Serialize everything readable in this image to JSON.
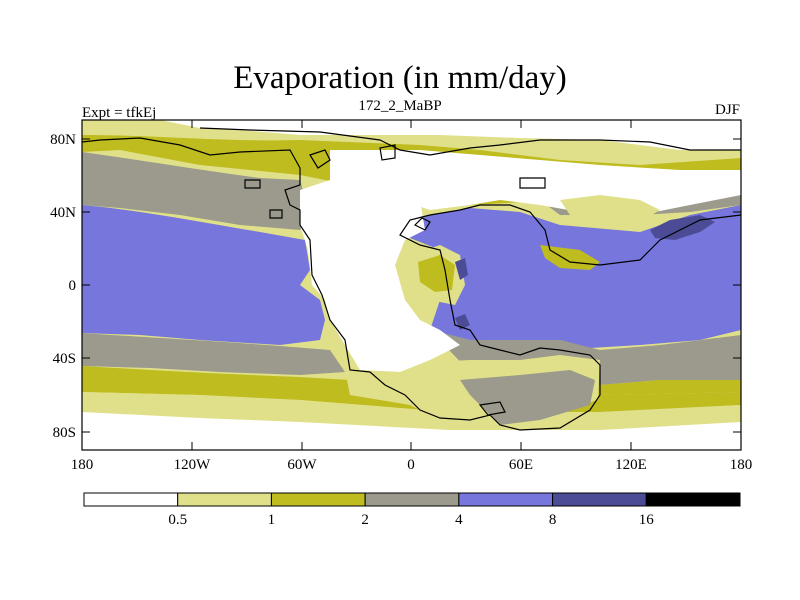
{
  "title": "Evaporation (in mm/day)",
  "subtitle_left": "Expt = tfkEj",
  "subtitle_center": "172_2_MaBP",
  "subtitle_right": "DJF",
  "lat_ticks": [
    "80N",
    "40N",
    "0",
    "40S",
    "80S"
  ],
  "lon_ticks": [
    "180",
    "120W",
    "60W",
    "0",
    "60E",
    "120E",
    "180"
  ],
  "colorbar": {
    "levels": [
      "0.5",
      "1",
      "2",
      "4",
      "8",
      "16"
    ],
    "colors": [
      "#ffffff",
      "#e1e08a",
      "#bfbc20",
      "#9b9a8c",
      "#7676dc",
      "#4c4c96",
      "#000000"
    ]
  }
}
